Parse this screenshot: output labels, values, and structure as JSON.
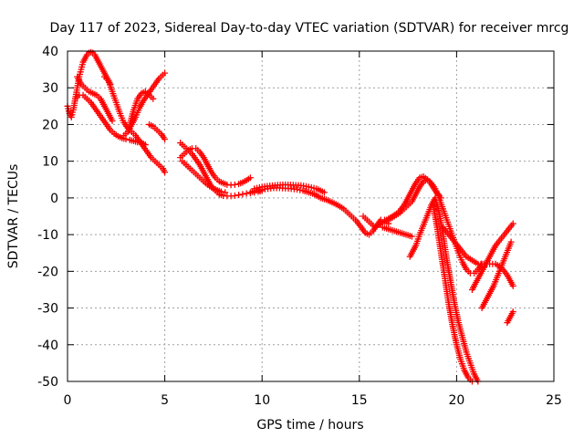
{
  "chart_data": {
    "type": "scatter",
    "title": "Day 117 of 2023, Sidereal Day-to-day VTEC variation (SDTVAR) for receiver mrcg",
    "xlabel": "GPS time / hours",
    "ylabel": "SDTVAR / TECUs",
    "xlim": [
      0,
      25
    ],
    "ylim": [
      -50,
      40
    ],
    "xticks": [
      "0",
      "5",
      "10",
      "15",
      "20",
      "25"
    ],
    "yticks": [
      "40",
      "30",
      "20",
      "10",
      "0",
      "-10",
      "-20",
      "-30",
      "-40",
      "-50"
    ],
    "xtick_values": [
      0,
      5,
      10,
      15,
      20,
      25
    ],
    "ytick_values": [
      40,
      30,
      20,
      10,
      0,
      -10,
      -20,
      -30,
      -40,
      -50
    ],
    "grid": true,
    "marker": "plus",
    "color": "#ff0000",
    "series": [
      {
        "x": [
          0.0,
          0.1,
          0.2,
          0.3,
          0.4,
          0.5,
          0.6,
          0.7,
          0.8,
          0.9,
          1.0,
          1.1,
          1.2,
          1.3,
          1.4,
          1.5,
          1.6,
          1.7,
          1.8,
          1.9,
          2.0,
          2.1,
          2.2
        ],
        "y": [
          25,
          23,
          22,
          24,
          27,
          30,
          33,
          35,
          37,
          38,
          39,
          39.5,
          39.7,
          39.5,
          39,
          38,
          37,
          36,
          35,
          34,
          33,
          32,
          31
        ]
      },
      {
        "x": [
          0.4,
          0.6,
          0.8,
          1.0,
          1.2,
          1.4,
          1.6,
          1.8,
          2.0,
          2.2,
          2.4,
          2.6,
          2.8,
          3.0,
          3.2,
          3.4,
          3.6,
          3.8,
          4.0
        ],
        "y": [
          27,
          28,
          28,
          27,
          26,
          24.5,
          23,
          21.5,
          20,
          18.5,
          17.5,
          16.8,
          16.3,
          16,
          15.8,
          15.5,
          15.2,
          15,
          14.5
        ]
      },
      {
        "x": [
          0.5,
          0.7,
          0.9,
          1.1,
          1.3,
          1.5,
          1.7,
          1.9,
          2.1,
          2.3
        ],
        "y": [
          33,
          31,
          30,
          29,
          28.5,
          28,
          27,
          25,
          23,
          21
        ]
      },
      {
        "x": [
          1.9,
          2.1,
          2.3,
          2.5,
          2.7,
          2.9,
          3.1,
          3.3,
          3.5,
          3.7,
          3.9,
          4.1,
          4.3,
          4.5,
          4.7,
          4.9,
          5.0
        ],
        "y": [
          33,
          32,
          29,
          26,
          23,
          20.5,
          19,
          18,
          17,
          15.5,
          14,
          12.5,
          11,
          10,
          9,
          8,
          7
        ]
      },
      {
        "x": [
          2.9,
          3.1,
          3.3,
          3.5,
          3.7,
          3.9,
          4.1,
          4.3,
          4.5,
          4.7,
          4.9,
          5.0
        ],
        "y": [
          17,
          18,
          20,
          22,
          24.5,
          26.5,
          28,
          29.5,
          31,
          32.5,
          33.5,
          34
        ]
      },
      {
        "x": [
          4.2,
          4.4,
          4.6,
          4.8,
          5.0
        ],
        "y": [
          20,
          19.5,
          18.5,
          17.5,
          16
        ]
      },
      {
        "x": [
          3.2,
          3.4,
          3.6,
          3.8,
          4.0,
          4.2,
          4.4
        ],
        "y": [
          20,
          24,
          27,
          28.5,
          29,
          28,
          27
        ]
      },
      {
        "x": [
          5.8,
          6.0,
          6.2,
          6.4,
          6.6,
          6.8,
          7.0,
          7.2,
          7.4,
          7.6,
          7.8,
          8.0,
          8.2,
          8.4,
          8.6,
          8.8,
          9.0,
          9.2,
          9.4,
          9.6,
          9.8,
          10.0
        ],
        "y": [
          15,
          14,
          13,
          12,
          10.5,
          9,
          7,
          5,
          3,
          2,
          1,
          0.6,
          0.5,
          0.5,
          0.6,
          0.8,
          1,
          1.2,
          1.3,
          1.5,
          1.7,
          2
        ]
      },
      {
        "x": [
          5.8,
          6.0,
          6.2,
          6.4,
          6.6,
          6.8,
          7.0,
          7.2,
          7.4,
          7.6,
          7.8,
          8.0,
          8.2,
          8.4,
          8.6,
          8.8,
          9.0,
          9.2,
          9.4
        ],
        "y": [
          11,
          12,
          13,
          13.5,
          13.5,
          12.5,
          11,
          9,
          7,
          5.5,
          4.5,
          4,
          3.6,
          3.5,
          3.6,
          3.8,
          4.2,
          4.8,
          5.5
        ]
      },
      {
        "x": [
          5.9,
          6.1,
          6.3,
          6.5,
          6.7,
          6.9,
          7.1,
          7.3,
          7.5,
          7.7,
          7.9,
          8.1
        ],
        "y": [
          10,
          9,
          8,
          7,
          6,
          5,
          4,
          3.2,
          2.6,
          2.1,
          1.7,
          1.5
        ]
      },
      {
        "x": [
          9.4,
          9.7,
          10.0,
          10.3,
          10.6,
          10.9,
          11.2,
          11.5,
          11.8,
          12.1,
          12.4,
          12.7,
          13.0,
          13.3,
          13.6,
          13.9,
          14.2,
          14.5,
          14.8,
          15.1,
          15.3,
          15.5,
          15.7,
          15.9,
          16.1,
          16.3,
          16.5
        ],
        "y": [
          1.5,
          2,
          2.3,
          2.5,
          2.7,
          2.7,
          2.6,
          2.5,
          2.3,
          2,
          1.5,
          1,
          0,
          -0.5,
          -1.2,
          -2,
          -3,
          -4.5,
          -6,
          -8,
          -9.5,
          -10,
          -9,
          -7.5,
          -6,
          -6,
          -7
        ]
      },
      {
        "x": [
          9.6,
          10.0,
          10.4,
          10.8,
          11.2,
          11.6,
          12.0,
          12.4,
          12.8,
          13.2
        ],
        "y": [
          2.5,
          3,
          3.3,
          3.5,
          3.6,
          3.5,
          3.4,
          3,
          2.5,
          1.5
        ]
      },
      {
        "x": [
          15.2,
          15.5,
          15.8,
          16.1,
          16.4,
          16.7,
          17.0,
          17.3,
          17.6,
          17.9,
          18.1,
          18.3,
          18.6,
          18.9,
          19.2
        ],
        "y": [
          -5,
          -6.5,
          -8,
          -7,
          -6,
          -5,
          -4,
          -2,
          1,
          4,
          5.5,
          5.8,
          4.5,
          2,
          0
        ]
      },
      {
        "x": [
          16.2,
          16.5,
          16.8,
          17.1,
          17.4,
          17.7
        ],
        "y": [
          -8,
          -8.5,
          -9,
          -9.5,
          -10,
          -10.5
        ]
      },
      {
        "x": [
          16.5,
          16.8,
          17.1,
          17.4,
          17.7,
          17.9,
          18.1,
          18.3,
          18.5,
          18.7,
          18.9,
          19.1,
          19.3,
          19.5,
          19.7,
          19.9,
          20.1,
          20.3,
          20.5,
          20.7,
          20.9,
          21.1,
          21.3
        ],
        "y": [
          -6,
          -5,
          -4,
          -2.5,
          -1,
          1,
          3,
          4.5,
          5,
          4,
          2.5,
          0,
          -3,
          -6,
          -9,
          -12,
          -15,
          -17.5,
          -19.5,
          -20.5,
          -20.5,
          -19.5,
          -18
        ]
      },
      {
        "x": [
          17.6,
          17.9,
          18.1,
          18.4,
          18.7,
          18.9,
          19.1,
          19.3,
          19.5,
          19.7,
          19.9,
          20.1,
          20.3,
          20.5,
          20.7,
          20.9,
          21.1,
          21.3
        ],
        "y": [
          -16,
          -13,
          -10,
          -6,
          -2,
          0,
          -4,
          -10,
          -17,
          -23,
          -29,
          -34,
          -38,
          -42,
          -45,
          -48,
          -50,
          -51
        ]
      },
      {
        "x": [
          18.8,
          19.0,
          19.2,
          19.4,
          19.6,
          19.8,
          20.0,
          20.2,
          20.4,
          20.6,
          20.8
        ],
        "y": [
          -2,
          -8,
          -15,
          -22,
          -29,
          -35,
          -40,
          -44,
          -47,
          -49,
          -50
        ]
      },
      {
        "x": [
          19.3,
          19.6,
          19.9,
          20.2,
          20.5,
          20.8,
          21.1,
          21.4,
          21.7,
          22.0,
          22.3,
          22.6,
          22.9
        ],
        "y": [
          -8,
          -10,
          -12,
          -14,
          -16,
          -17,
          -18,
          -18,
          -18,
          -18,
          -19,
          -21,
          -24
        ]
      },
      {
        "x": [
          20.8,
          21.1,
          21.4,
          21.7,
          22.0,
          22.3,
          22.6,
          22.9
        ],
        "y": [
          -25,
          -22,
          -19,
          -16,
          -13,
          -11,
          -9,
          -7
        ]
      },
      {
        "x": [
          21.3,
          21.6,
          21.9,
          22.2,
          22.5,
          22.8
        ],
        "y": [
          -30,
          -27,
          -24,
          -20,
          -16,
          -12
        ]
      },
      {
        "x": [
          22.6,
          22.7,
          22.8,
          22.9
        ],
        "y": [
          -34,
          -33,
          -32,
          -31
        ]
      }
    ]
  }
}
